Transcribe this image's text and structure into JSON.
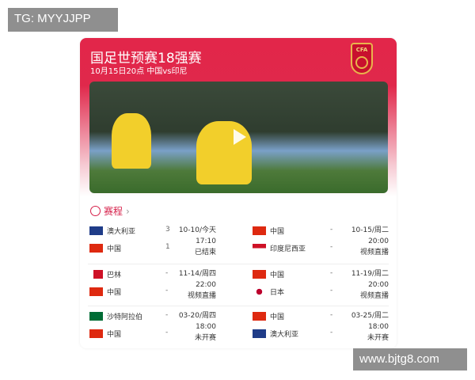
{
  "watermarks": {
    "top_left": "TG: MYYJJPP",
    "bottom_right": "www.bjtg8.com"
  },
  "header": {
    "title": "国足世预赛18强赛",
    "subtitle": "10月15日20点 中国vs印尼",
    "logo_text": "CFA"
  },
  "video": {
    "icon": "play-icon"
  },
  "schedule": {
    "label": "赛程",
    "chevron": "›"
  },
  "matches": [
    {
      "home": {
        "name": "澳大利亚",
        "flag": "au",
        "score": "3"
      },
      "away": {
        "name": "中国",
        "flag": "cn",
        "score": "1"
      },
      "date": "10-10/今天",
      "time": "17:10",
      "status": "已结束"
    },
    {
      "home": {
        "name": "中国",
        "flag": "cn",
        "score": "-"
      },
      "away": {
        "name": "印度尼西亚",
        "flag": "id",
        "score": "-"
      },
      "date": "10-15/周二",
      "time": "20:00",
      "status": "视频直播"
    },
    {
      "home": {
        "name": "巴林",
        "flag": "bh",
        "score": "-"
      },
      "away": {
        "name": "中国",
        "flag": "cn",
        "score": "-"
      },
      "date": "11-14/周四",
      "time": "22:00",
      "status": "视频直播"
    },
    {
      "home": {
        "name": "中国",
        "flag": "cn",
        "score": "-"
      },
      "away": {
        "name": "日本",
        "flag": "jp",
        "score": "-"
      },
      "date": "11-19/周二",
      "time": "20:00",
      "status": "视频直播"
    },
    {
      "home": {
        "name": "沙特阿拉伯",
        "flag": "sa",
        "score": "-"
      },
      "away": {
        "name": "中国",
        "flag": "cn",
        "score": "-"
      },
      "date": "03-20/周四",
      "time": "18:00",
      "status": "未开赛"
    },
    {
      "home": {
        "name": "中国",
        "flag": "cn",
        "score": "-"
      },
      "away": {
        "name": "澳大利亚",
        "flag": "au",
        "score": "-"
      },
      "date": "03-25/周二",
      "time": "18:00",
      "status": "未开赛"
    }
  ],
  "colors": {
    "accent": "#e2264a"
  }
}
